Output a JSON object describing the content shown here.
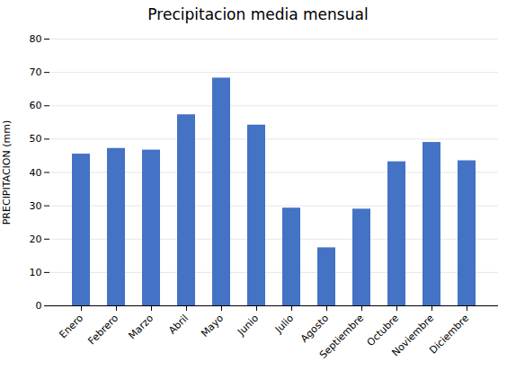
{
  "chart_data": {
    "type": "bar",
    "title": "Precipitacion media mensual",
    "ylabel": "PRECIPITACION (mm)",
    "categories": [
      "Enero",
      "Febrero",
      "Marzo",
      "Abril",
      "Mayo",
      "Junio",
      "Julio",
      "Agosto",
      "Septiembre",
      "Octubre",
      "Noviembre",
      "Diciembre"
    ],
    "values": [
      45.5,
      47.2,
      46.7,
      57.3,
      68.3,
      54.2,
      29.3,
      17.4,
      29.0,
      43.2,
      49.0,
      43.5
    ],
    "color": "#4472C4",
    "ylim": [
      0,
      80
    ],
    "yticks": [
      0,
      10,
      20,
      30,
      40,
      50,
      60,
      70,
      80
    ],
    "grid": true
  }
}
